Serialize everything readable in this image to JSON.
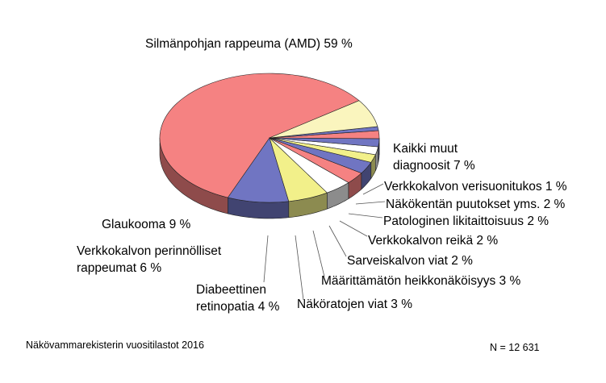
{
  "chart_data": {
    "type": "pie",
    "style": "3d",
    "slices": [
      {
        "label": "Silmänpohjan rappeuma (AMD) 59 %",
        "value": 59,
        "color": "#F58282"
      },
      {
        "label": "Glaukooma 9 %",
        "value": 9,
        "color": "#7075C2"
      },
      {
        "label": "Verkkokalvon perinnölliset rappeumat 6 %",
        "label_lines": [
          "Verkkokalvon perinnölliset",
          "rappeumat 6 %"
        ],
        "value": 6,
        "color": "#F2F08A"
      },
      {
        "label": "Diabeettinen retinopatia 4 %",
        "label_lines": [
          "Diabeettinen",
          "retinopatia 4 %"
        ],
        "value": 4,
        "color": "#FFFFFF"
      },
      {
        "label": "Näköratojen viat 3 %",
        "value": 3,
        "color": "#F58282"
      },
      {
        "label": "Määrittämätön heikkonäköisyys 3 %",
        "value": 3,
        "color": "#7075C2"
      },
      {
        "label": "Sarveiskalvon viat 2 %",
        "value": 2,
        "color": "#F2F08A"
      },
      {
        "label": "Verkkokalvon reikä 2 %",
        "value": 2,
        "color": "#FFFFFF"
      },
      {
        "label": "Patologinen likitaittoisuus 2 %",
        "value": 2,
        "color": "#7075C2"
      },
      {
        "label": "Näkökentän puutokset yms. 2 %",
        "value": 2,
        "color": "#F58282"
      },
      {
        "label": "Verkkokalvon verisuonitukos 1 %",
        "value": 1,
        "color": "#7075C2"
      },
      {
        "label": "Kaikki muut diagnoosit 7 %",
        "label_lines": [
          "Kaikki muut",
          "diagnoosit 7 %"
        ],
        "value": 7,
        "color": "#FAF5BE"
      }
    ]
  },
  "footer": {
    "source": "Näkövammarekisterin vuositilastot 2016",
    "n": "N = 12 631"
  }
}
